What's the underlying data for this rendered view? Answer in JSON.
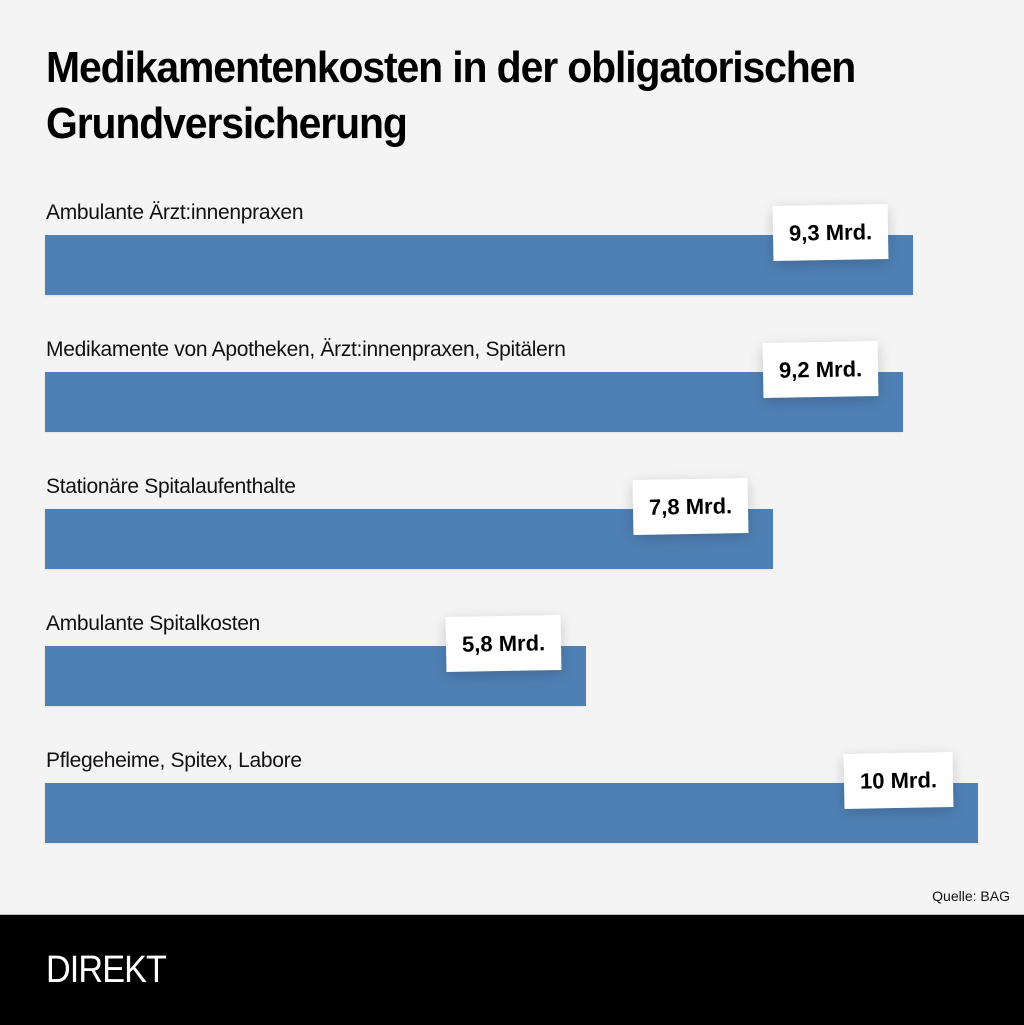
{
  "title": "Medikamentenkosten in der obligatorischen Grundversicherung",
  "source": "Quelle: BAG",
  "footer": {
    "logo": "DIREKT"
  },
  "colors": {
    "bar": "#4f80b5",
    "background": "#f4f4f4",
    "footer": "#000000"
  },
  "chart_data": {
    "type": "bar",
    "orientation": "horizontal",
    "title": "Medikamentenkosten in der obligatorischen Grundversicherung",
    "unit": "Mrd.",
    "xlim": [
      0,
      10
    ],
    "grid": false,
    "categories": [
      "Ambulante Ärzt:innenpraxen",
      "Medikamente von Apotheken, Ärzt:innenpraxen, Spitälern",
      "Stationäre Spitalaufenthalte",
      "Ambulante Spitalkosten",
      "Pflegeheime, Spitex, Labore"
    ],
    "values": [
      9.3,
      9.2,
      7.8,
      5.8,
      10
    ],
    "value_labels": [
      "9,3 Mrd.",
      "9,2 Mrd.",
      "7,8 Mrd.",
      "5,8 Mrd.",
      "10 Mrd."
    ]
  }
}
